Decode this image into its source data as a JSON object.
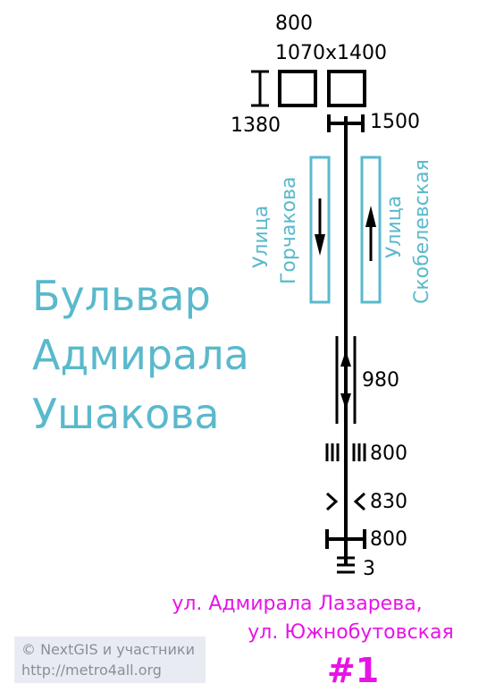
{
  "station": {
    "lines": [
      "Бульвар",
      "Адмирала",
      "Ушакова"
    ]
  },
  "streets": {
    "left": [
      "Улица",
      "Горчакова"
    ],
    "right": [
      "Улица",
      "Скобелевская"
    ]
  },
  "labels": {
    "door_width": "800",
    "door_size": "1070x1400",
    "turnstile_width": "1380",
    "gate_width": "1500",
    "passage_width": "980",
    "stairs_width": "800",
    "narrowing_width": "830",
    "barrier_width": "800",
    "steps_count": "3"
  },
  "exit": {
    "line1": "ул. Адмирала Лазарева,",
    "line2": "ул. Южнобутовская",
    "number": "#1"
  },
  "credit": {
    "line1": "© NextGIS и участники",
    "line2": "http://metro4all.org"
  },
  "colors": {
    "station": "#5ab9cc",
    "exit": "#e614e6",
    "line": "#000000"
  }
}
